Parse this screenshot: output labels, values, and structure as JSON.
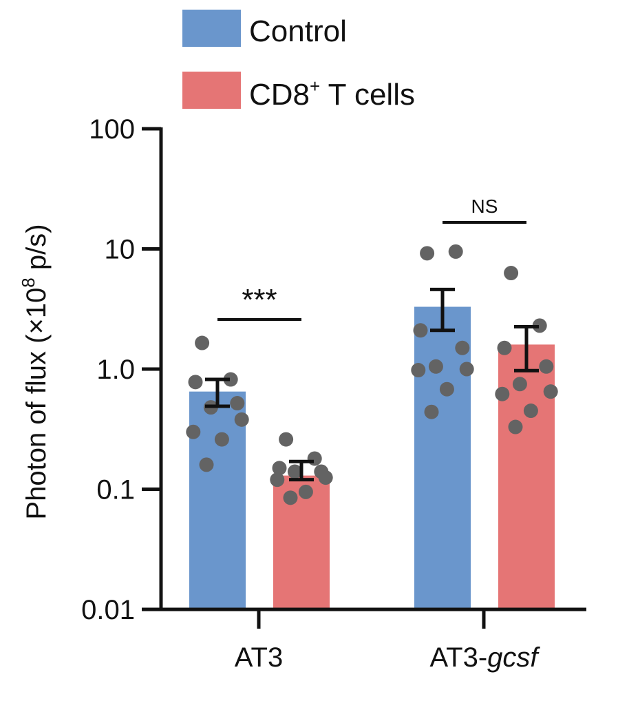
{
  "chart_data": {
    "type": "bar",
    "yscale": "log",
    "ylim": [
      0.01,
      100
    ],
    "yticks": [
      "0.01",
      "0.1",
      "1.0",
      "10",
      "100"
    ],
    "ylabel": {
      "prefix": "Photon of flux (×10",
      "superscript": "8",
      "suffix": " p/s)"
    },
    "categories": [
      {
        "prefix": "AT3",
        "italic": ""
      },
      {
        "prefix": "AT3-",
        "italic": "gcsf"
      }
    ],
    "series": [
      {
        "name": "Control",
        "name_superscript": "",
        "name_suffix": "",
        "color": "#6a96cc",
        "values": [
          0.65,
          3.3
        ],
        "sem": [
          [
            0.49,
            0.82
          ],
          [
            2.1,
            4.6
          ]
        ],
        "points": [
          [
            1.65,
            0.82,
            0.78,
            0.52,
            0.48,
            0.38,
            0.3,
            0.26,
            0.16
          ],
          [
            9.2,
            9.5,
            2.1,
            1.5,
            1.05,
            1.0,
            0.98,
            0.68,
            0.44
          ]
        ]
      },
      {
        "name": "CD8",
        "name_superscript": "+",
        "name_suffix": " T cells",
        "color": "#e57575",
        "values": [
          0.13,
          1.6
        ],
        "sem": [
          [
            0.12,
            0.17
          ],
          [
            0.97,
            2.25
          ]
        ],
        "points": [
          [
            0.26,
            0.18,
            0.15,
            0.14,
            0.14,
            0.125,
            0.12,
            0.095,
            0.085
          ],
          [
            6.3,
            2.3,
            1.5,
            1.05,
            0.75,
            0.65,
            0.62,
            0.45,
            0.33
          ]
        ]
      }
    ],
    "significance": [
      "***",
      "NS"
    ],
    "point_color": "#636363"
  }
}
